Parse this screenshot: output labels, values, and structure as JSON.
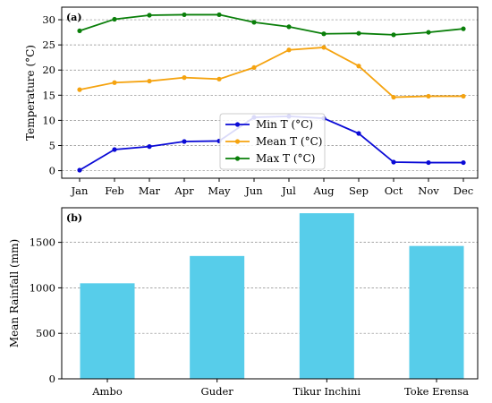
{
  "chart_data": [
    {
      "type": "line",
      "panel_label": "(a)",
      "title": "",
      "xlabel": "",
      "ylabel": "Temperature (°C)",
      "categories": [
        "Jan",
        "Feb",
        "Mar",
        "Apr",
        "May",
        "Jun",
        "Jul",
        "Aug",
        "Sep",
        "Oct",
        "Nov",
        "Dec"
      ],
      "ylim": [
        -1.5,
        32.5
      ],
      "yticks": [
        0,
        5,
        10,
        15,
        20,
        25,
        30
      ],
      "grid": "horizontal dashed",
      "legend_position": "center",
      "series": [
        {
          "name": "Min T (°C)",
          "color": "#0a0ad6",
          "values": [
            0.1,
            4.2,
            4.8,
            5.8,
            5.9,
            10.6,
            10.8,
            10.4,
            7.4,
            1.7,
            1.6,
            1.6
          ]
        },
        {
          "name": "Mean T (°C)",
          "color": "#f5a30f",
          "values": [
            16.1,
            17.5,
            17.8,
            18.5,
            18.2,
            20.5,
            24.0,
            24.5,
            20.8,
            14.6,
            14.8,
            14.8
          ]
        },
        {
          "name": "Max T (°C)",
          "color": "#0a7f0a",
          "values": [
            27.8,
            30.1,
            30.9,
            31.0,
            31.0,
            29.5,
            28.6,
            27.2,
            27.3,
            27.0,
            27.5,
            28.2
          ]
        }
      ]
    },
    {
      "type": "bar",
      "panel_label": "(b)",
      "title": "",
      "xlabel": "",
      "ylabel": "Mean Rainfall (mm)",
      "categories": [
        "Ambo",
        "Guder",
        "Tikur Inchini",
        "Toke Erensa"
      ],
      "values": [
        1050,
        1350,
        1820,
        1460
      ],
      "bar_color": "#57cdea",
      "ylim": [
        0,
        1880
      ],
      "yticks": [
        0,
        500,
        1000,
        1500
      ],
      "grid": "horizontal dashed"
    }
  ]
}
